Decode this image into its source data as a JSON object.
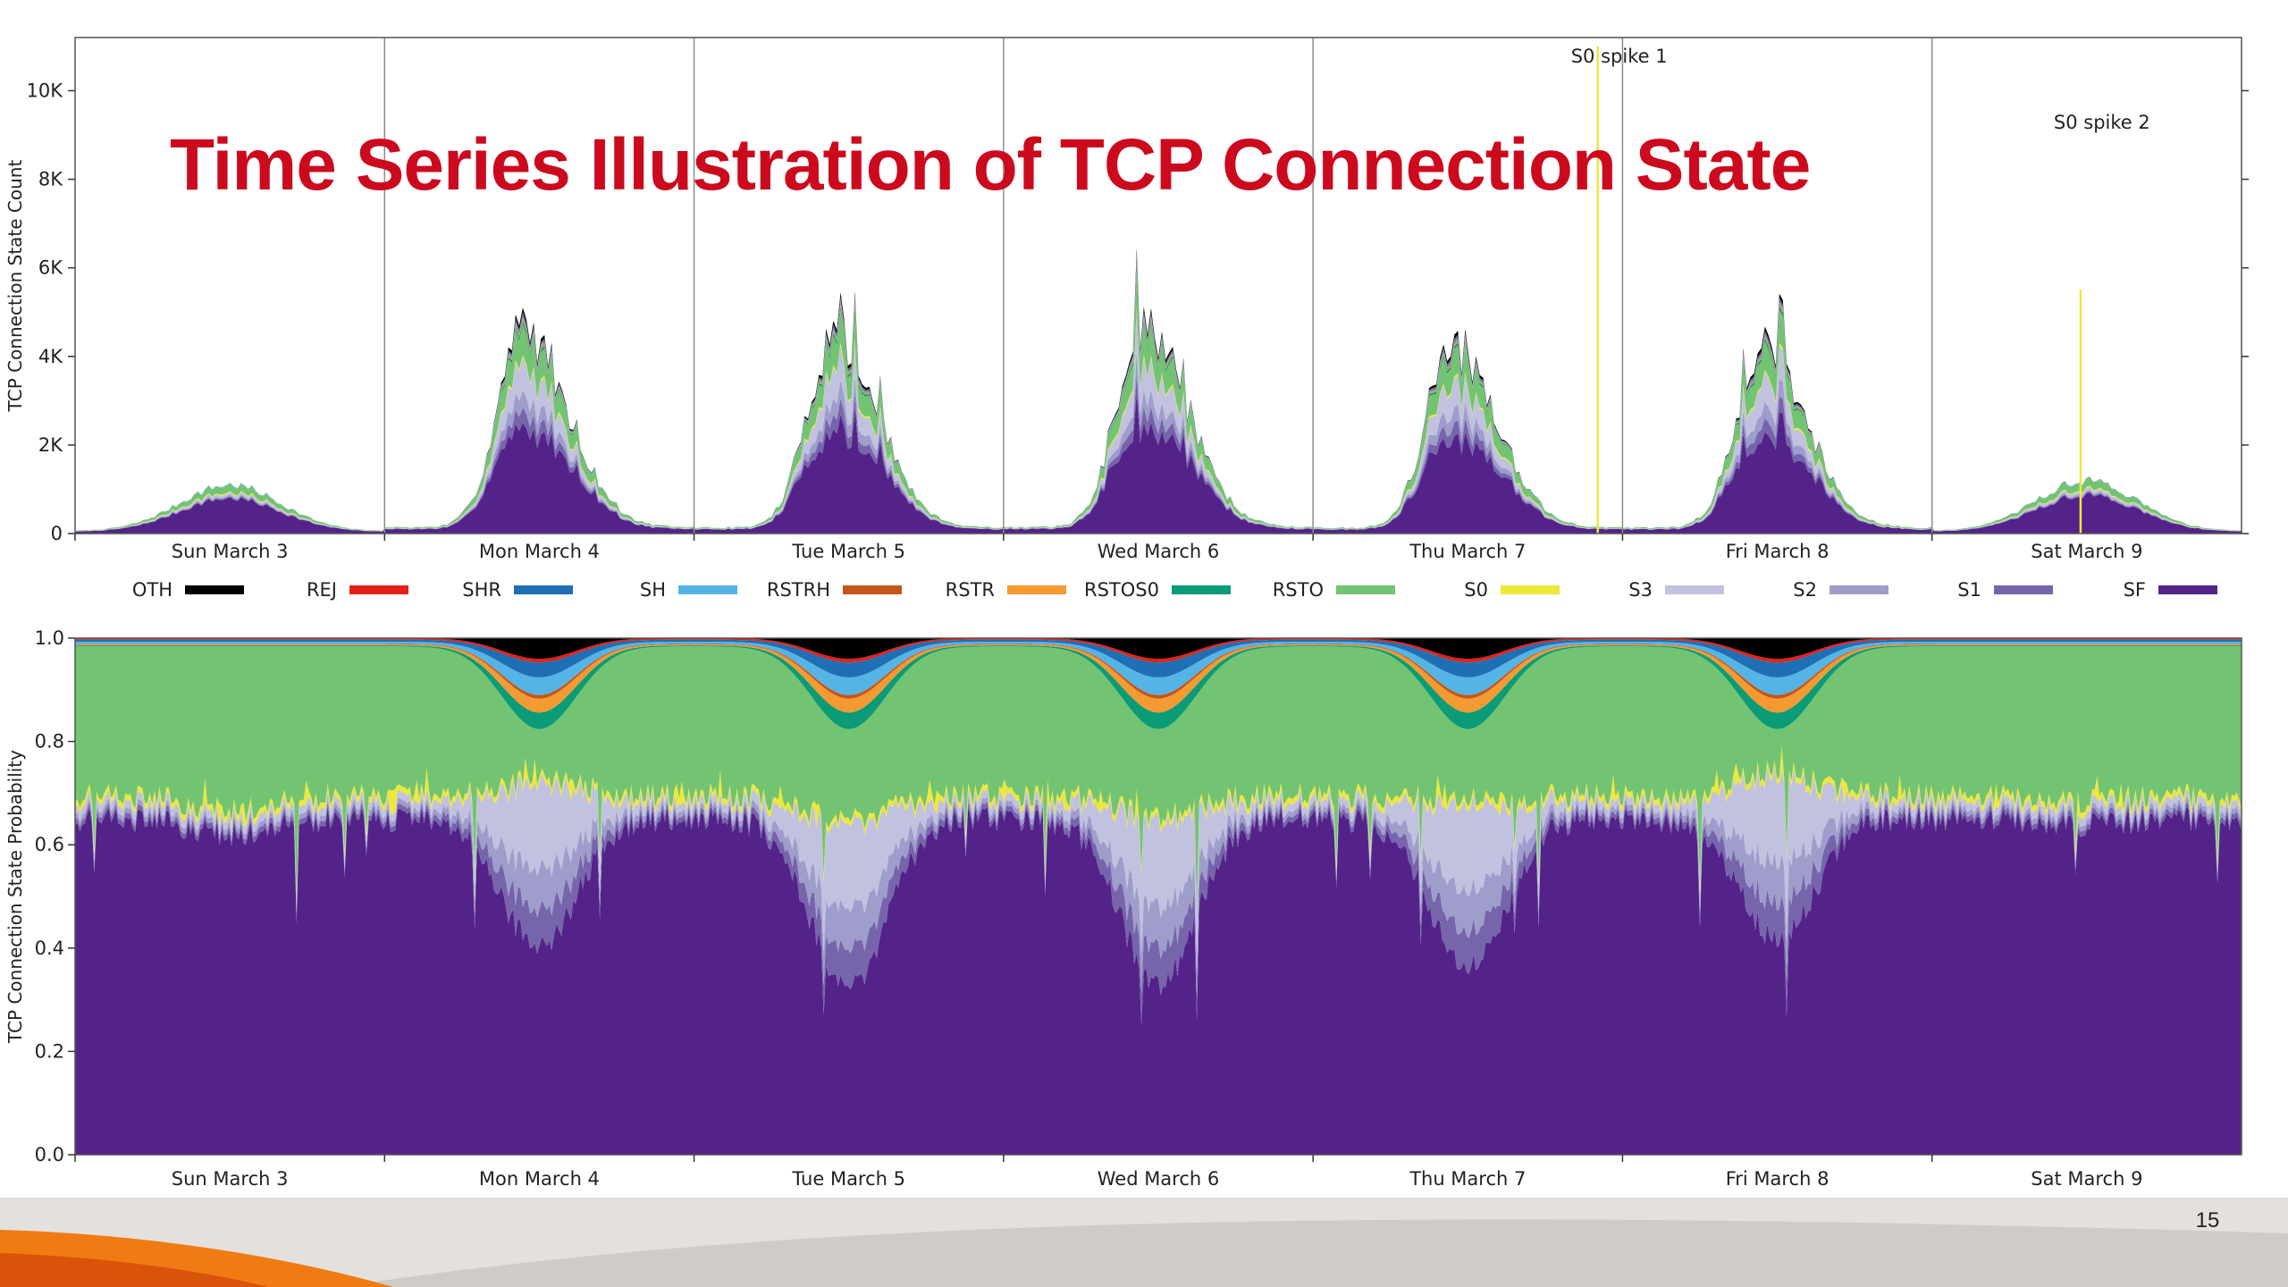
{
  "slide": {
    "title": "Time Series Illustration of TCP Connection State",
    "page_number": "15"
  },
  "colors": {
    "title": "#cc0a1e",
    "footer_orange": "#f07b13",
    "footer_grey": "#d9d6d2"
  },
  "chart_data": [
    {
      "type": "area",
      "stacked": true,
      "title": "",
      "xlabel": "",
      "ylabel": "TCP Connection State Count",
      "x_unit": "days since Sun March 3 00:00",
      "xlim": [
        0,
        7
      ],
      "ylim": [
        0,
        11200
      ],
      "yticks": [
        0,
        2000,
        4000,
        6000,
        8000,
        10000
      ],
      "ytick_labels": [
        "0",
        "2K",
        "4K",
        "6K",
        "8K",
        "10K"
      ],
      "xtick_labels": [
        "Sun March 3",
        "Mon March 4",
        "Tue March 5",
        "Wed March 6",
        "Thu March 7",
        "Fri March 8",
        "Sat March 9"
      ],
      "day_peaks": [
        1100,
        4700,
        4500,
        4800,
        4300,
        4300,
        1200
      ],
      "series_shares": {
        "weekday": {
          "SF": 0.5,
          "S1": 0.07,
          "S2": 0.08,
          "S3": 0.15,
          "S0": 0.01,
          "RSTO": 0.14,
          "RSTOS0": 0.015,
          "RSTR": 0.01,
          "RSTRH": 0.005,
          "SH": 0.01,
          "SHR": 0.01,
          "REJ": 0.005,
          "OTH": 0.02
        },
        "weekend": {
          "SF": 0.72,
          "S1": 0.02,
          "S2": 0.03,
          "S3": 0.05,
          "S0": 0.02,
          "RSTO": 0.14,
          "RSTOS0": 0.005,
          "RSTR": 0.005,
          "RSTRH": 0.0,
          "SH": 0.005,
          "SHR": 0.005,
          "REJ": 0.0,
          "OTH": 0.0
        }
      },
      "annotations": [
        {
          "label": "S0 spike 1",
          "x": 4.92,
          "y": 11000
        },
        {
          "label": "S0 spike 2",
          "x": 6.48,
          "y": 9500
        }
      ],
      "grid": "vertical day separators",
      "legend_placement": "below"
    },
    {
      "type": "area",
      "stacked": true,
      "normalized": true,
      "title": "",
      "xlabel": "",
      "ylabel": "TCP Connection State Probability",
      "x_unit": "days since Sun March 3 00:00",
      "xlim": [
        0,
        7
      ],
      "ylim": [
        0.0,
        1.0
      ],
      "yticks": [
        0.0,
        0.2,
        0.4,
        0.6,
        0.8,
        1.0
      ],
      "ytick_labels": [
        "0.0",
        "0.2",
        "0.4",
        "0.6",
        "0.8",
        "1.0"
      ],
      "xtick_labels": [
        "Sun March 3",
        "Mon March 4",
        "Tue March 5",
        "Wed March 6",
        "Thu March 7",
        "Fri March 8",
        "Sat March 9"
      ],
      "sf_baseline": 0.65,
      "sf_midday_minimum": [
        0.62,
        0.4,
        0.32,
        0.33,
        0.36,
        0.42,
        0.64
      ],
      "grid": "none"
    }
  ],
  "legend": {
    "items": [
      {
        "name": "OTH",
        "color": "#000000"
      },
      {
        "name": "REJ",
        "color": "#e32119"
      },
      {
        "name": "SHR",
        "color": "#1f6fb4"
      },
      {
        "name": "SH",
        "color": "#55b4e6"
      },
      {
        "name": "RSTRH",
        "color": "#c4561a"
      },
      {
        "name": "RSTR",
        "color": "#f39a32"
      },
      {
        "name": "RSTOS0",
        "color": "#0b9b76"
      },
      {
        "name": "RSTO",
        "color": "#72c472"
      },
      {
        "name": "S0",
        "color": "#eee73c"
      },
      {
        "name": "S3",
        "color": "#c0c2df"
      },
      {
        "name": "S2",
        "color": "#9f9dcb"
      },
      {
        "name": "S1",
        "color": "#7665ab"
      },
      {
        "name": "SF",
        "color": "#532389"
      }
    ]
  }
}
